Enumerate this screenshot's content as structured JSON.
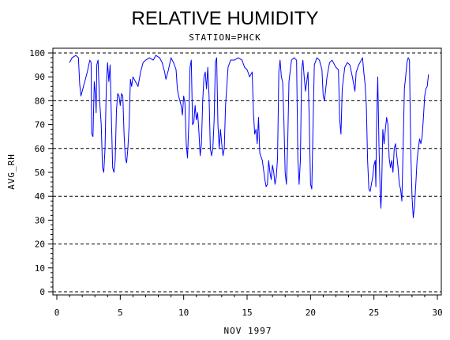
{
  "chart_data": {
    "type": "line",
    "title": "RELATIVE HUMIDITY",
    "subtitle": "STATION=PHCK",
    "xlabel": "NOV 1997",
    "ylabel": "AVG_RH",
    "xlim": [
      0,
      30
    ],
    "ylim": [
      0,
      100
    ],
    "x_ticks": [
      0,
      5,
      10,
      15,
      20,
      25,
      30
    ],
    "y_ticks": [
      0,
      10,
      20,
      30,
      40,
      50,
      60,
      70,
      80,
      90,
      100
    ],
    "y_gridlines": [
      0,
      20,
      40,
      60,
      80,
      100
    ],
    "grid": "dashed horizontal",
    "series": [
      {
        "color": "#0000ff",
        "points": [
          [
            1.0,
            96
          ],
          [
            1.2,
            98
          ],
          [
            1.5,
            99
          ],
          [
            1.7,
            98
          ],
          [
            1.8,
            87
          ],
          [
            1.9,
            82
          ],
          [
            2.0,
            84
          ],
          [
            2.2,
            88
          ],
          [
            2.4,
            92
          ],
          [
            2.6,
            97
          ],
          [
            2.7,
            96
          ],
          [
            2.75,
            66
          ],
          [
            2.85,
            65
          ],
          [
            2.95,
            88
          ],
          [
            3.05,
            82
          ],
          [
            3.1,
            75
          ],
          [
            3.15,
            95
          ],
          [
            3.25,
            97
          ],
          [
            3.35,
            82
          ],
          [
            3.5,
            70
          ],
          [
            3.6,
            52
          ],
          [
            3.7,
            50
          ],
          [
            3.8,
            60
          ],
          [
            3.9,
            86
          ],
          [
            4.0,
            96
          ],
          [
            4.1,
            88
          ],
          [
            4.2,
            95
          ],
          [
            4.3,
            73
          ],
          [
            4.4,
            52
          ],
          [
            4.5,
            50
          ],
          [
            4.6,
            55
          ],
          [
            4.7,
            76
          ],
          [
            4.8,
            83
          ],
          [
            4.9,
            82
          ],
          [
            5.0,
            78
          ],
          [
            5.1,
            83
          ],
          [
            5.2,
            82
          ],
          [
            5.3,
            66
          ],
          [
            5.4,
            56
          ],
          [
            5.5,
            54
          ],
          [
            5.6,
            60
          ],
          [
            5.7,
            70
          ],
          [
            5.8,
            89
          ],
          [
            5.9,
            86
          ],
          [
            6.0,
            90
          ],
          [
            6.2,
            88
          ],
          [
            6.4,
            86
          ],
          [
            6.6,
            92
          ],
          [
            6.8,
            96
          ],
          [
            7.0,
            97
          ],
          [
            7.3,
            98
          ],
          [
            7.6,
            97
          ],
          [
            7.8,
            99
          ],
          [
            8.1,
            98
          ],
          [
            8.3,
            96
          ],
          [
            8.5,
            92
          ],
          [
            8.6,
            89
          ],
          [
            8.8,
            93
          ],
          [
            9.0,
            98
          ],
          [
            9.2,
            96
          ],
          [
            9.4,
            93
          ],
          [
            9.5,
            85
          ],
          [
            9.6,
            82
          ],
          [
            9.7,
            80
          ],
          [
            9.8,
            78
          ],
          [
            9.9,
            74
          ],
          [
            10.0,
            82
          ],
          [
            10.1,
            79
          ],
          [
            10.2,
            62
          ],
          [
            10.3,
            56
          ],
          [
            10.4,
            70
          ],
          [
            10.5,
            94
          ],
          [
            10.6,
            97
          ],
          [
            10.7,
            70
          ],
          [
            10.8,
            71
          ],
          [
            10.9,
            78
          ],
          [
            11.0,
            72
          ],
          [
            11.1,
            75
          ],
          [
            11.2,
            67
          ],
          [
            11.3,
            57
          ],
          [
            11.4,
            62
          ],
          [
            11.5,
            80
          ],
          [
            11.6,
            90
          ],
          [
            11.7,
            92
          ],
          [
            11.8,
            85
          ],
          [
            11.9,
            94
          ],
          [
            12.0,
            82
          ],
          [
            12.1,
            60
          ],
          [
            12.2,
            57
          ],
          [
            12.3,
            60
          ],
          [
            12.4,
            72
          ],
          [
            12.5,
            96
          ],
          [
            12.6,
            98
          ],
          [
            12.7,
            70
          ],
          [
            12.8,
            60
          ],
          [
            12.9,
            68
          ],
          [
            13.0,
            62
          ],
          [
            13.1,
            57
          ],
          [
            13.2,
            60
          ],
          [
            13.3,
            78
          ],
          [
            13.5,
            94
          ],
          [
            13.7,
            97
          ],
          [
            14.0,
            97
          ],
          [
            14.3,
            98
          ],
          [
            14.6,
            97
          ],
          [
            14.8,
            94
          ],
          [
            15.0,
            93
          ],
          [
            15.2,
            90
          ],
          [
            15.4,
            92
          ],
          [
            15.5,
            75
          ],
          [
            15.6,
            66
          ],
          [
            15.7,
            68
          ],
          [
            15.8,
            62
          ],
          [
            15.9,
            73
          ],
          [
            16.0,
            58
          ],
          [
            16.2,
            55
          ],
          [
            16.4,
            47
          ],
          [
            16.5,
            44
          ],
          [
            16.6,
            45
          ],
          [
            16.7,
            55
          ],
          [
            16.8,
            50
          ],
          [
            16.9,
            47
          ],
          [
            17.0,
            53
          ],
          [
            17.1,
            50
          ],
          [
            17.2,
            45
          ],
          [
            17.3,
            48
          ],
          [
            17.4,
            56
          ],
          [
            17.5,
            92
          ],
          [
            17.6,
            97
          ],
          [
            17.7,
            90
          ],
          [
            17.8,
            88
          ],
          [
            17.9,
            72
          ],
          [
            18.0,
            50
          ],
          [
            18.1,
            45
          ],
          [
            18.2,
            62
          ],
          [
            18.3,
            88
          ],
          [
            18.5,
            97
          ],
          [
            18.7,
            98
          ],
          [
            18.9,
            97
          ],
          [
            19.0,
            56
          ],
          [
            19.1,
            45
          ],
          [
            19.2,
            55
          ],
          [
            19.3,
            93
          ],
          [
            19.4,
            97
          ],
          [
            19.5,
            90
          ],
          [
            19.6,
            84
          ],
          [
            19.8,
            92
          ],
          [
            19.9,
            72
          ],
          [
            20.0,
            45
          ],
          [
            20.1,
            43
          ],
          [
            20.2,
            70
          ],
          [
            20.3,
            95
          ],
          [
            20.5,
            98
          ],
          [
            20.7,
            97
          ],
          [
            20.9,
            93
          ],
          [
            21.0,
            82
          ],
          [
            21.1,
            80
          ],
          [
            21.3,
            90
          ],
          [
            21.5,
            96
          ],
          [
            21.7,
            97
          ],
          [
            21.9,
            95
          ],
          [
            22.0,
            94
          ],
          [
            22.2,
            93
          ],
          [
            22.3,
            72
          ],
          [
            22.4,
            66
          ],
          [
            22.5,
            85
          ],
          [
            22.7,
            94
          ],
          [
            22.9,
            96
          ],
          [
            23.1,
            95
          ],
          [
            23.3,
            90
          ],
          [
            23.5,
            84
          ],
          [
            23.6,
            92
          ],
          [
            23.8,
            95
          ],
          [
            24.0,
            97
          ],
          [
            24.1,
            98
          ],
          [
            24.2,
            92
          ],
          [
            24.3,
            87
          ],
          [
            24.4,
            78
          ],
          [
            24.5,
            55
          ],
          [
            24.6,
            43
          ],
          [
            24.7,
            42
          ],
          [
            24.8,
            45
          ],
          [
            24.9,
            48
          ],
          [
            25.0,
            53
          ],
          [
            25.1,
            55
          ],
          [
            25.15,
            44
          ],
          [
            25.2,
            68
          ],
          [
            25.3,
            90
          ],
          [
            25.4,
            60
          ],
          [
            25.5,
            40
          ],
          [
            25.55,
            35
          ],
          [
            25.6,
            42
          ],
          [
            25.7,
            68
          ],
          [
            25.8,
            62
          ],
          [
            25.9,
            68
          ],
          [
            26.0,
            73
          ],
          [
            26.1,
            70
          ],
          [
            26.2,
            56
          ],
          [
            26.3,
            52
          ],
          [
            26.4,
            55
          ],
          [
            26.5,
            50
          ],
          [
            26.6,
            60
          ],
          [
            26.7,
            62
          ],
          [
            26.8,
            57
          ],
          [
            26.9,
            52
          ],
          [
            27.0,
            45
          ],
          [
            27.1,
            43
          ],
          [
            27.2,
            38
          ],
          [
            27.3,
            60
          ],
          [
            27.4,
            85
          ],
          [
            27.5,
            90
          ],
          [
            27.6,
            96
          ],
          [
            27.7,
            98
          ],
          [
            27.8,
            97
          ],
          [
            27.9,
            60
          ],
          [
            28.0,
            40
          ],
          [
            28.1,
            31
          ],
          [
            28.2,
            36
          ],
          [
            28.3,
            45
          ],
          [
            28.4,
            55
          ],
          [
            28.5,
            60
          ],
          [
            28.6,
            64
          ],
          [
            28.7,
            62
          ],
          [
            28.8,
            65
          ],
          [
            28.9,
            73
          ],
          [
            29.0,
            82
          ],
          [
            29.1,
            85
          ],
          [
            29.2,
            86
          ],
          [
            29.3,
            91
          ]
        ]
      }
    ]
  }
}
